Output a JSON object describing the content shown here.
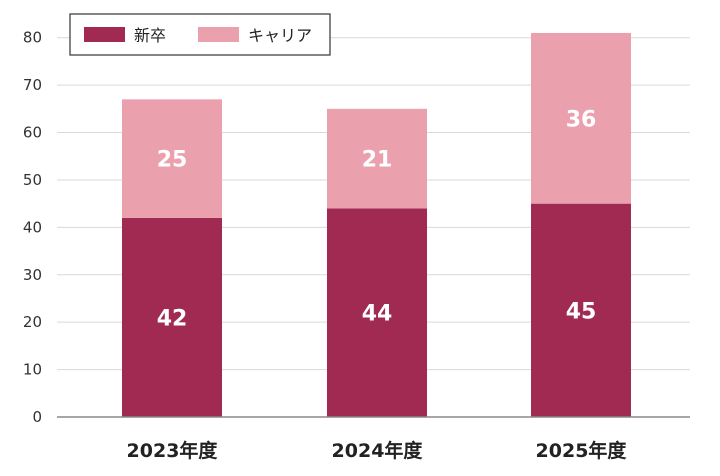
{
  "chart_data": {
    "type": "bar",
    "stacked": true,
    "categories": [
      "2023年度",
      "2024年度",
      "2025年度"
    ],
    "series": [
      {
        "name": "新卒",
        "values": [
          42,
          44,
          45
        ],
        "color": "#A02A52"
      },
      {
        "name": "キャリア",
        "values": [
          25,
          21,
          36
        ],
        "color": "#EBA0AE"
      }
    ],
    "ylim": [
      0,
      85
    ],
    "yticks": [
      0,
      10,
      20,
      30,
      40,
      50,
      60,
      70,
      80
    ],
    "grid": true,
    "legend_position": "top-left"
  }
}
